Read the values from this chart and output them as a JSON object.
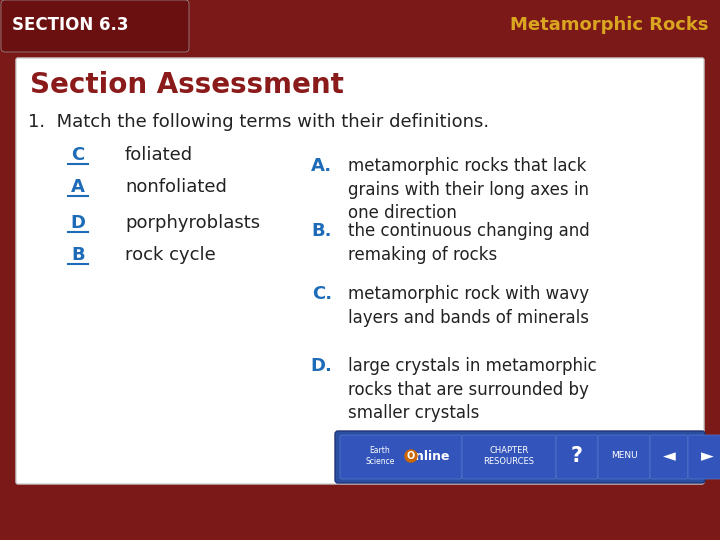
{
  "title_header": "Metamorphic Rocks",
  "section_label": "SECTION 6.3",
  "section_assessment": "Section Assessment",
  "question": "1.  Match the following terms with their definitions.",
  "left_items": [
    {
      "letter": "C",
      "term": "foliated"
    },
    {
      "letter": "A",
      "term": "nonfoliated"
    },
    {
      "letter": "D",
      "term": "porphyroblasts"
    },
    {
      "letter": "B",
      "term": "rock cycle"
    }
  ],
  "right_items": [
    {
      "letter": "A.",
      "definition": "metamorphic rocks that lack\ngrains with their long axes in\none direction"
    },
    {
      "letter": "B.",
      "definition": "the continuous changing and\nremaking of rocks"
    },
    {
      "letter": "C.",
      "definition": "metamorphic rock with wavy\nlayers and bands of minerals"
    },
    {
      "letter": "D.",
      "definition": "large crystals in metamorphic\nrocks that are surrounded by\nsmaller crystals"
    }
  ],
  "bg_color": "#7B1818",
  "card_color": "#FFFFFF",
  "header_color": "#DAA520",
  "dark_red": "#8B1A1A",
  "blue_color": "#1E6BB8",
  "text_color": "#222222",
  "nav_color": "#2A4FA0"
}
